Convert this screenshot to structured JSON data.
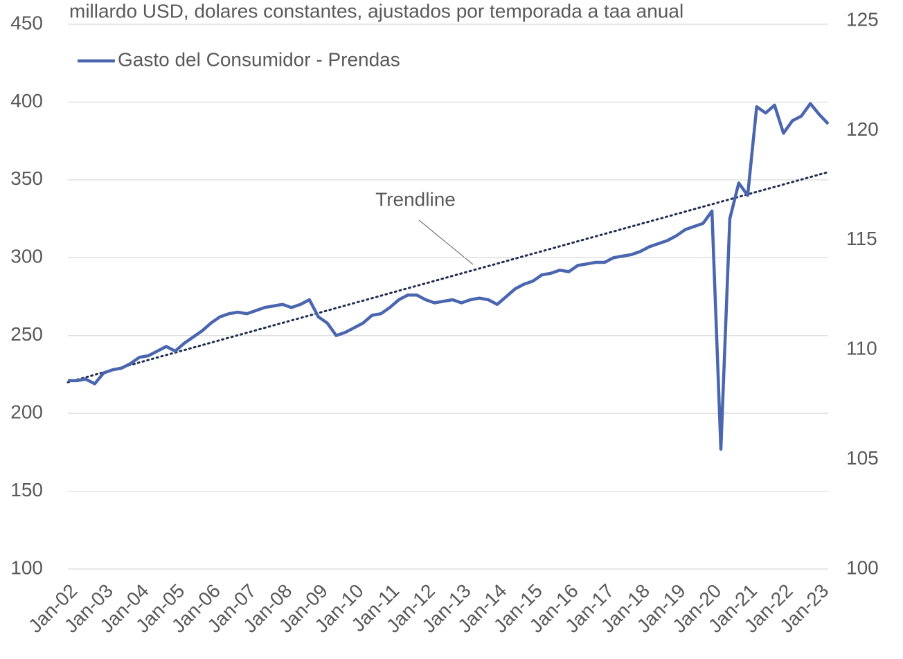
{
  "chart_data": {
    "type": "line",
    "title": "millardo USD, dolares constantes, ajustados por temporada a taa anual",
    "categories": [
      "Jan-02",
      null,
      null,
      null,
      "Jan-03",
      null,
      null,
      null,
      "Jan-04",
      null,
      null,
      null,
      "Jan-05",
      null,
      null,
      null,
      "Jan-06",
      null,
      null,
      null,
      "Jan-07",
      null,
      null,
      null,
      "Jan-08",
      null,
      null,
      null,
      "Jan-09",
      null,
      null,
      null,
      "Jan-10",
      null,
      null,
      null,
      "Jan-11",
      null,
      null,
      null,
      "Jan-12",
      null,
      null,
      null,
      "Jan-13",
      null,
      null,
      null,
      "Jan-14",
      null,
      null,
      null,
      "Jan-15",
      null,
      null,
      null,
      "Jan-16",
      null,
      null,
      null,
      "Jan-17",
      null,
      null,
      null,
      "Jan-18",
      null,
      null,
      null,
      "Jan-19",
      null,
      null,
      null,
      "Jan-20",
      null,
      null,
      null,
      "Jan-21",
      null,
      null,
      null,
      "Jan-22",
      null,
      null,
      null,
      "Jan-23",
      null
    ],
    "series": [
      {
        "name": "Gasto del Consumidor - Prendas",
        "color": "#4a66ae",
        "values": [
          221,
          221,
          222,
          219,
          226,
          228,
          229,
          232,
          236,
          237,
          240,
          243,
          240,
          245,
          249,
          253,
          258,
          262,
          264,
          265,
          264,
          266,
          268,
          269,
          270,
          268,
          270,
          273,
          262,
          258,
          250,
          252,
          255,
          258,
          263,
          264,
          268,
          273,
          276,
          276,
          273,
          271,
          272,
          273,
          271,
          273,
          274,
          273,
          270,
          275,
          280,
          283,
          285,
          289,
          290,
          292,
          291,
          295,
          296,
          297,
          297,
          300,
          301,
          302,
          304,
          307,
          309,
          311,
          314,
          318,
          320,
          322,
          330,
          177,
          325,
          348,
          340,
          397,
          393,
          398,
          380,
          388,
          391,
          399,
          392,
          386
        ]
      }
    ],
    "trendline": {
      "label": "Trendline",
      "start": 220,
      "end": 355,
      "color": "#1f2d4d"
    },
    "ylim": [
      100,
      450
    ],
    "yticks": [
      100,
      150,
      200,
      250,
      300,
      350,
      400,
      450
    ],
    "y2lim": [
      100,
      125
    ],
    "y2ticks": [
      100,
      105,
      110,
      115,
      120,
      125
    ],
    "grid": true,
    "legend": "top-left"
  }
}
